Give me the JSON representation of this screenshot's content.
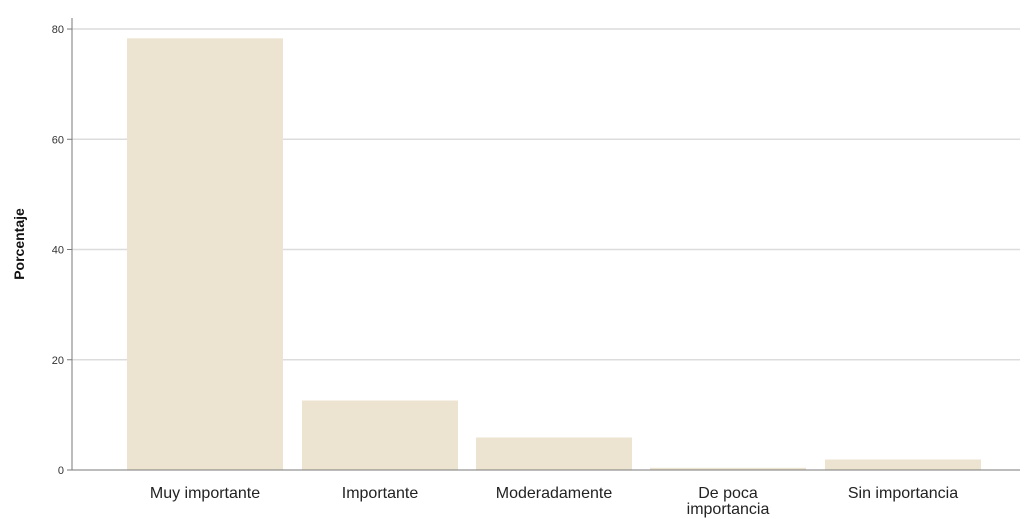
{
  "chart_data": {
    "type": "bar",
    "title": "",
    "xlabel": "",
    "ylabel": "Porcentaje",
    "categories": [
      "Muy importante",
      "Importante",
      "Moderadamente",
      "De poca importancia",
      "Sin importancia"
    ],
    "category_lines": [
      [
        "Muy importante"
      ],
      [
        "Importante"
      ],
      [
        "Moderadamente"
      ],
      [
        "De poca",
        "importancia"
      ],
      [
        "Sin importancia"
      ]
    ],
    "values": [
      78.3,
      12.6,
      5.9,
      0.4,
      1.9
    ],
    "ylim": [
      0,
      82
    ],
    "yticks": [
      0,
      20,
      40,
      60,
      80
    ],
    "grid": true,
    "legend": "none",
    "bar_color": "#ece4d0",
    "grid_color": "#dcdcdc",
    "axis_color": "#7a7a7a"
  }
}
